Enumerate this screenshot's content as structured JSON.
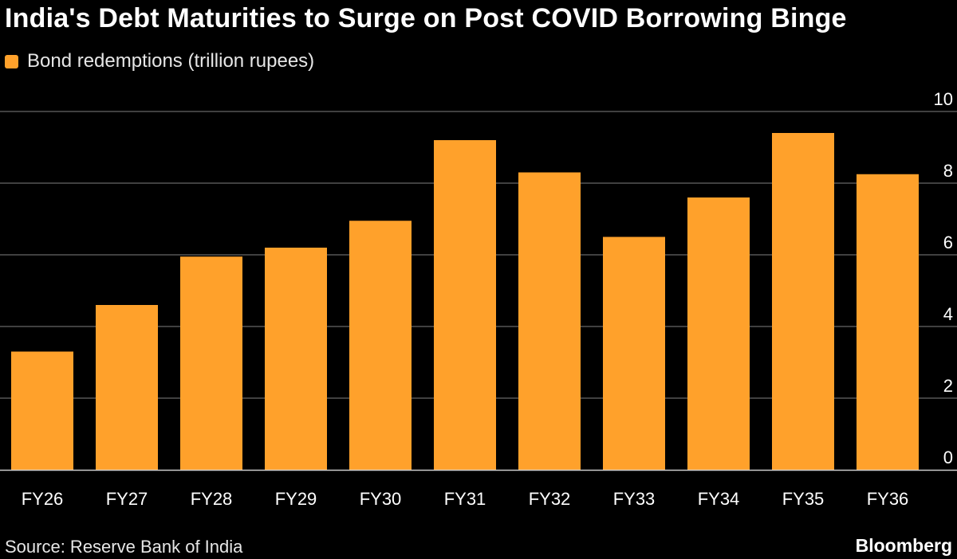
{
  "header": {
    "title": "India's Debt Maturities to Surge on Post COVID Borrowing Binge"
  },
  "legend": {
    "label": "Bond redemptions (trillion rupees)",
    "color": "#ffa12b"
  },
  "footer": {
    "source": "Source: Reserve Bank of India",
    "brand": "Bloomberg"
  },
  "colors": {
    "background": "#000000",
    "bar": "#ffa12b",
    "grid": "#555555"
  },
  "chart_data": {
    "type": "bar",
    "title": "India's Debt Maturities to Surge on Post COVID Borrowing Binge",
    "xlabel": "",
    "ylabel": "",
    "categories": [
      "FY26",
      "FY27",
      "FY28",
      "FY29",
      "FY30",
      "FY31",
      "FY32",
      "FY33",
      "FY34",
      "FY35",
      "FY36"
    ],
    "series": [
      {
        "name": "Bond redemptions (trillion rupees)",
        "values": [
          3.3,
          4.6,
          5.95,
          6.2,
          6.95,
          9.2,
          8.3,
          6.5,
          7.6,
          9.4,
          8.25
        ]
      }
    ],
    "ylim": [
      0,
      10
    ],
    "yticks": [
      "0",
      "2",
      "4",
      "6",
      "8",
      "10"
    ],
    "y_axis_side": "right",
    "grid": true,
    "legend_position": "top-left"
  }
}
